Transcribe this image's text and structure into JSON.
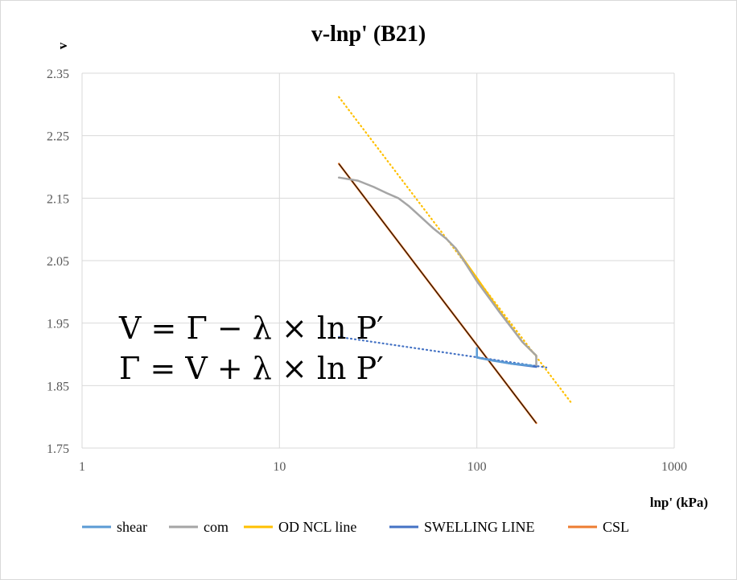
{
  "chart_data": {
    "type": "scatter",
    "title": "v-lnp' (B21)",
    "xlabel": "lnp' (kPa)",
    "ylabel": "v",
    "x_scale": "log",
    "xlim": [
      1,
      1000
    ],
    "ylim": [
      1.75,
      2.35
    ],
    "x_ticks": [
      1,
      10,
      100,
      1000
    ],
    "x_tick_labels": [
      "1",
      "10",
      "100",
      "1000"
    ],
    "y_ticks": [
      1.75,
      1.85,
      1.95,
      2.05,
      2.15,
      2.25,
      2.35
    ],
    "y_tick_labels": [
      "1.75",
      "1.85",
      "1.95",
      "2.05",
      "2.15",
      "2.25",
      "2.35"
    ],
    "grid": true,
    "legend_position": "bottom",
    "annotations": [
      "V = Γ − λ × ln P′",
      "Γ = V + λ × ln P′"
    ],
    "series": [
      {
        "name": "shear",
        "color": "#5b9bd5",
        "style": "solid",
        "points": [
          [
            100,
            1.91
          ],
          [
            100,
            1.895
          ],
          [
            120,
            1.89
          ],
          [
            150,
            1.885
          ],
          [
            190,
            1.882
          ]
        ]
      },
      {
        "name": "com",
        "color": "#a5a5a5",
        "style": "solid",
        "points": [
          [
            20,
            2.183
          ],
          [
            25,
            2.178
          ],
          [
            30,
            2.168
          ],
          [
            35,
            2.158
          ],
          [
            40,
            2.15
          ],
          [
            45,
            2.138
          ],
          [
            50,
            2.125
          ],
          [
            60,
            2.102
          ],
          [
            70,
            2.085
          ],
          [
            78,
            2.07
          ],
          [
            85,
            2.052
          ],
          [
            100,
            2.017
          ],
          [
            130,
            1.968
          ],
          [
            170,
            1.92
          ],
          [
            200,
            1.898
          ],
          [
            200,
            1.88
          ]
        ]
      },
      {
        "name": "OD NCL line",
        "color": "#ffc000",
        "style": "solid",
        "points": [
          [
            78,
            2.07
          ],
          [
            100,
            2.022
          ],
          [
            130,
            1.97
          ],
          [
            170,
            1.92
          ],
          [
            200,
            1.898
          ]
        ]
      },
      {
        "name": "OD NCL line (trend)",
        "color": "#ffc000",
        "style": "dotted",
        "points": [
          [
            20,
            2.312
          ],
          [
            300,
            1.823
          ]
        ]
      },
      {
        "name": "SWELLING LINE",
        "color": "#4472c4",
        "style": "solid",
        "points": [
          [
            100,
            1.895
          ],
          [
            150,
            1.885
          ],
          [
            200,
            1.88
          ]
        ]
      },
      {
        "name": "SWELLING LINE (trend)",
        "color": "#4472c4",
        "style": "dotted",
        "points": [
          [
            20,
            1.928
          ],
          [
            225,
            1.879
          ]
        ]
      },
      {
        "name": "CSL",
        "color": "#ed7d31",
        "style": "solid",
        "points": [
          [
            20,
            2.205
          ],
          [
            200,
            1.79
          ]
        ]
      }
    ],
    "legend": [
      {
        "label": "shear",
        "color": "#5b9bd5"
      },
      {
        "label": "com",
        "color": "#a5a5a5"
      },
      {
        "label": "OD NCL line",
        "color": "#ffc000"
      },
      {
        "label": "SWELLING LINE",
        "color": "#4472c4"
      },
      {
        "label": "CSL",
        "color": "#ed7d31"
      }
    ]
  }
}
